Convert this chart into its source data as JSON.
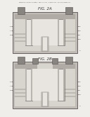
{
  "bg_color": "#f0eeeb",
  "header_text": "Patent Application Publication   Sep. 13, 2011   Sheet 9 of 13   US 2011/0220874 A1",
  "fig_a_label": "FIG. 2A",
  "fig_b_label": "FIG. 2B",
  "colors": {
    "white": "#ffffff",
    "substrate_outer": "#c0bcb5",
    "substrate_inner": "#d8d5ce",
    "oxide_gray": "#b0aca5",
    "poly_dark": "#888580",
    "gate_top": "#a0a0a0",
    "trench_liner": "#b8b4ae",
    "trench_inside": "#e8e5e0",
    "center_fill": "#d0ccc6",
    "border": "#555050",
    "text": "#333333",
    "line": "#666660"
  }
}
